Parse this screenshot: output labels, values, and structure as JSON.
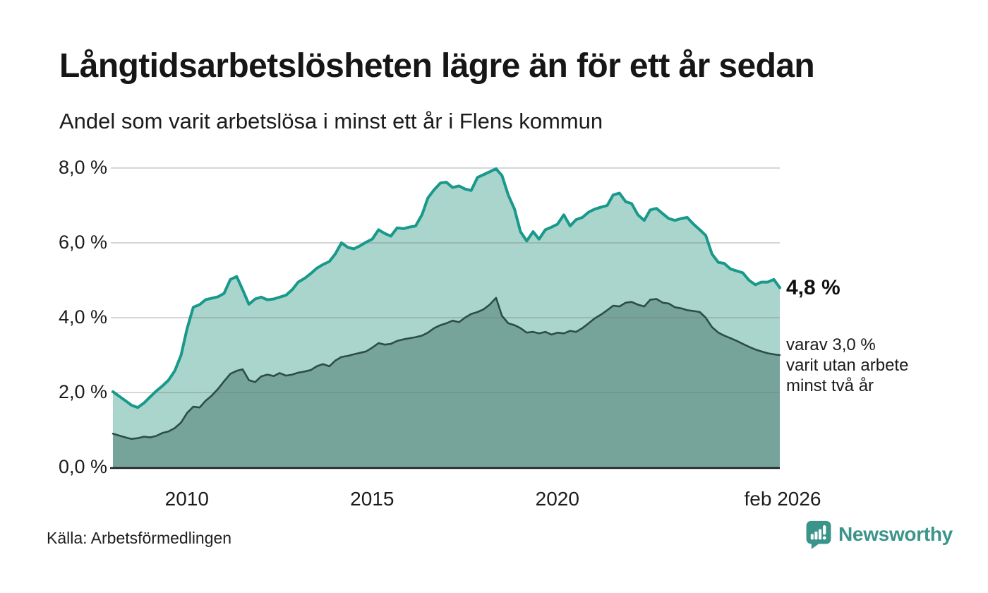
{
  "header": {
    "title": "Långtidsarbetslösheten lägre än för ett år sedan",
    "subtitle": "Andel som varit arbetslösa i minst ett år i Flens kommun"
  },
  "annotations": {
    "latest_value": "4,8 %",
    "secondary_note": "varav 3,0 %\nvarit utan arbete\nminst två år"
  },
  "footer": {
    "source": "Källa: Arbetsförmedlingen",
    "brand": "Newsworthy"
  },
  "colors": {
    "accent_teal": "#18998b",
    "light_fill": "#a9d5cc",
    "dark_line": "#2d4d47",
    "dark_fill": "#76a49a",
    "brand_teal": "#3b948a",
    "axis": "#1c1c1c",
    "gridline": "rgba(120,120,120,0.30)"
  },
  "chart_data": {
    "type": "area",
    "title": "Långtidsarbetslösheten lägre än för ett år sedan",
    "subtitle": "Andel som varit arbetslösa i minst ett år i Flens kommun",
    "x_unit": "decimal_year (monthly data, feb 2008–feb 2026)",
    "x_range": [
      2008.08,
      2026.08
    ],
    "ylim": [
      0,
      8
    ],
    "grid": "horizontal",
    "yticks": [
      {
        "value": 0,
        "label": "0,0 %"
      },
      {
        "value": 2,
        "label": "2,0 %"
      },
      {
        "value": 4,
        "label": "4,0 %"
      },
      {
        "value": 6,
        "label": "6,0 %"
      },
      {
        "value": 8,
        "label": "8,0 %"
      }
    ],
    "xticks": [
      {
        "value": 2010,
        "label": "2010"
      },
      {
        "value": 2015,
        "label": "2015"
      },
      {
        "value": 2020,
        "label": "2020"
      },
      {
        "value": 2026.08,
        "label": "feb 2026"
      }
    ],
    "x": [
      2008.08,
      2008.25,
      2008.42,
      2008.58,
      2008.75,
      2008.92,
      2009.08,
      2009.25,
      2009.42,
      2009.58,
      2009.75,
      2009.92,
      2010.08,
      2010.25,
      2010.42,
      2010.58,
      2010.75,
      2010.92,
      2011.08,
      2011.25,
      2011.42,
      2011.58,
      2011.75,
      2011.92,
      2012.08,
      2012.25,
      2012.42,
      2012.58,
      2012.75,
      2012.92,
      2013.08,
      2013.25,
      2013.42,
      2013.58,
      2013.75,
      2013.92,
      2014.08,
      2014.25,
      2014.42,
      2014.58,
      2014.75,
      2014.92,
      2015.08,
      2015.25,
      2015.42,
      2015.58,
      2015.75,
      2015.92,
      2016.08,
      2016.25,
      2016.42,
      2016.58,
      2016.75,
      2016.92,
      2017.08,
      2017.25,
      2017.42,
      2017.58,
      2017.75,
      2017.92,
      2018.08,
      2018.25,
      2018.42,
      2018.58,
      2018.75,
      2018.92,
      2019.08,
      2019.25,
      2019.42,
      2019.58,
      2019.75,
      2019.92,
      2020.08,
      2020.25,
      2020.42,
      2020.58,
      2020.75,
      2020.92,
      2021.08,
      2021.25,
      2021.42,
      2021.58,
      2021.75,
      2021.92,
      2022.08,
      2022.25,
      2022.42,
      2022.58,
      2022.75,
      2022.92,
      2023.08,
      2023.25,
      2023.42,
      2023.58,
      2023.75,
      2023.92,
      2024.08,
      2024.25,
      2024.42,
      2024.58,
      2024.75,
      2024.92,
      2025.08,
      2025.25,
      2025.42,
      2025.58,
      2025.75,
      2025.92,
      2026.08
    ],
    "series": [
      {
        "id": "unemployed-1yr",
        "name": "Andel som varit arbetslösa i minst ett år",
        "line_color": "#18998b",
        "fill_color": "#a9d5cc",
        "line_width": 4,
        "latest_label": "4,8 %",
        "values": [
          2.02,
          1.9,
          1.78,
          1.66,
          1.6,
          1.72,
          1.88,
          2.04,
          2.18,
          2.33,
          2.58,
          3.0,
          3.7,
          4.28,
          4.35,
          4.48,
          4.52,
          4.56,
          4.65,
          5.02,
          5.1,
          4.75,
          4.36,
          4.5,
          4.55,
          4.48,
          4.5,
          4.55,
          4.6,
          4.75,
          4.95,
          5.05,
          5.18,
          5.32,
          5.42,
          5.5,
          5.7,
          6.0,
          5.88,
          5.84,
          5.92,
          6.02,
          6.1,
          6.35,
          6.25,
          6.18,
          6.4,
          6.38,
          6.42,
          6.45,
          6.75,
          7.2,
          7.42,
          7.6,
          7.62,
          7.48,
          7.52,
          7.44,
          7.4,
          7.75,
          7.82,
          7.9,
          7.98,
          7.8,
          7.28,
          6.9,
          6.3,
          6.05,
          6.3,
          6.1,
          6.35,
          6.42,
          6.5,
          6.75,
          6.45,
          6.62,
          6.68,
          6.82,
          6.9,
          6.95,
          7.0,
          7.28,
          7.33,
          7.1,
          7.05,
          6.75,
          6.6,
          6.88,
          6.92,
          6.78,
          6.65,
          6.6,
          6.65,
          6.68,
          6.5,
          6.35,
          6.2,
          5.7,
          5.48,
          5.45,
          5.3,
          5.25,
          5.2,
          5.0,
          4.88,
          4.95,
          4.95,
          5.02,
          4.8
        ]
      },
      {
        "id": "unemployed-2yr",
        "name": "varav utan arbete minst två år",
        "line_color": "#2d4d47",
        "fill_color": "#76a49a",
        "line_width": 2.6,
        "latest_label": "3,0 %",
        "values": [
          0.9,
          0.85,
          0.8,
          0.76,
          0.78,
          0.82,
          0.8,
          0.84,
          0.92,
          0.96,
          1.05,
          1.2,
          1.45,
          1.62,
          1.6,
          1.78,
          1.92,
          2.1,
          2.3,
          2.5,
          2.58,
          2.62,
          2.33,
          2.28,
          2.43,
          2.48,
          2.44,
          2.52,
          2.45,
          2.48,
          2.53,
          2.56,
          2.6,
          2.7,
          2.76,
          2.7,
          2.85,
          2.95,
          2.98,
          3.02,
          3.06,
          3.1,
          3.2,
          3.32,
          3.28,
          3.3,
          3.38,
          3.42,
          3.45,
          3.48,
          3.52,
          3.6,
          3.72,
          3.8,
          3.85,
          3.92,
          3.88,
          4.0,
          4.1,
          4.15,
          4.22,
          4.35,
          4.53,
          4.05,
          3.85,
          3.8,
          3.72,
          3.6,
          3.62,
          3.58,
          3.62,
          3.55,
          3.6,
          3.58,
          3.65,
          3.62,
          3.72,
          3.85,
          3.98,
          4.08,
          4.2,
          4.32,
          4.3,
          4.4,
          4.42,
          4.35,
          4.3,
          4.48,
          4.5,
          4.4,
          4.38,
          4.28,
          4.25,
          4.2,
          4.18,
          4.15,
          4.0,
          3.75,
          3.6,
          3.52,
          3.45,
          3.38,
          3.3,
          3.22,
          3.15,
          3.1,
          3.05,
          3.02,
          3.0
        ]
      }
    ]
  }
}
